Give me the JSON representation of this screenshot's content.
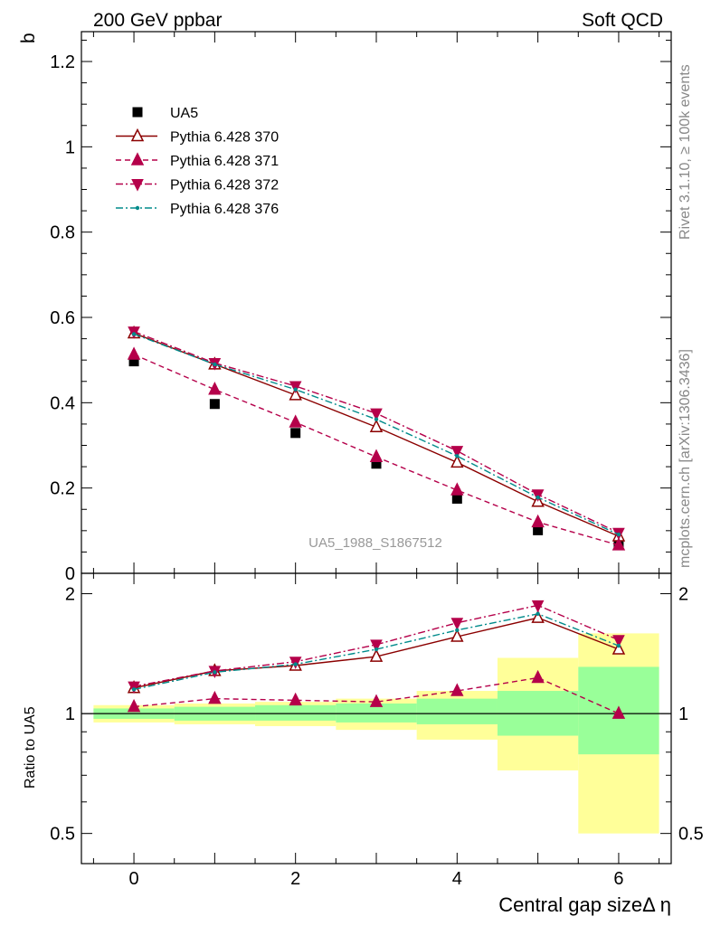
{
  "header": {
    "left": "200 GeV ppbar",
    "right": "Soft QCD"
  },
  "side_labels": {
    "rivet": "Rivet 3.1.10, ≥ 100k events",
    "mcplots": "mcplots.cern.ch [arXiv:1306.3436]"
  },
  "watermark": "UA5_1988_S1867512",
  "chart_data": [
    {
      "type": "scatter",
      "name": "main",
      "ylabel": "b",
      "xlabel": "Central gap sizeΔ η",
      "xlim": [
        -0.65,
        6.65
      ],
      "ylim": [
        0,
        1.27
      ],
      "yticks": [
        0,
        0.2,
        0.4,
        0.6,
        0.8,
        1,
        1.2
      ],
      "ytick_labels": [
        "0",
        "0.2",
        "0.4",
        "0.6",
        "0.8",
        "1",
        "1.2"
      ],
      "x": [
        0,
        1,
        2,
        3,
        4,
        5,
        6
      ],
      "series": [
        {
          "name": "UA5",
          "values": [
            0.497,
            0.397,
            0.329,
            0.257,
            0.175,
            0.101,
            0.066
          ],
          "color": "#000000",
          "marker": "square",
          "line": "none"
        },
        {
          "name": "Pythia 6.428 370",
          "values": [
            0.563,
            0.49,
            0.418,
            0.343,
            0.26,
            0.168,
            0.087
          ],
          "color": "#8b0000",
          "marker": "triangle-up-open",
          "line": "solid"
        },
        {
          "name": "Pythia 6.428 371",
          "values": [
            0.513,
            0.431,
            0.354,
            0.273,
            0.195,
            0.12,
            0.066
          ],
          "color": "#b5004a",
          "marker": "triangle-up",
          "line": "dashed"
        },
        {
          "name": "Pythia 6.428 372",
          "values": [
            0.567,
            0.493,
            0.439,
            0.375,
            0.287,
            0.185,
            0.095
          ],
          "color": "#b5004a",
          "marker": "triangle-down",
          "line": "dashdot"
        },
        {
          "name": "Pythia 6.428 376",
          "values": [
            0.561,
            0.49,
            0.431,
            0.361,
            0.275,
            0.178,
            0.091
          ],
          "color": "#008b8b",
          "marker": "dot",
          "line": "dashdot"
        }
      ],
      "legend": "top-left"
    },
    {
      "type": "scatter",
      "name": "ratio",
      "ylabel": "Ratio to UA5",
      "xlabel": "Central gap sizeΔ η",
      "xlim": [
        -0.65,
        6.65
      ],
      "ylim": [
        0.42,
        2.25
      ],
      "yticks": [
        0.5,
        1,
        2
      ],
      "ytick_labels": [
        "0.5",
        "1",
        "2"
      ],
      "xticks": [
        0,
        2,
        4,
        6
      ],
      "xtick_labels": [
        "0",
        "2",
        "4",
        "6"
      ],
      "bands": {
        "edges": [
          -0.5,
          0.5,
          1.5,
          2.5,
          3.5,
          4.5,
          5.5,
          6.5
        ],
        "green": [
          [
            0.97,
            1.03
          ],
          [
            0.96,
            1.04
          ],
          [
            0.96,
            1.05
          ],
          [
            0.95,
            1.06
          ],
          [
            0.94,
            1.09
          ],
          [
            0.88,
            1.14
          ],
          [
            0.79,
            1.31
          ]
        ],
        "yellow": [
          [
            0.95,
            1.05
          ],
          [
            0.94,
            1.06
          ],
          [
            0.93,
            1.07
          ],
          [
            0.91,
            1.09
          ],
          [
            0.86,
            1.14
          ],
          [
            0.72,
            1.38
          ],
          [
            0.5,
            1.59
          ]
        ]
      },
      "x": [
        0,
        1,
        2,
        3,
        4,
        5,
        6
      ],
      "series": [
        {
          "name": "Pythia 6.428 370",
          "values": [
            1.16,
            1.28,
            1.32,
            1.39,
            1.56,
            1.74,
            1.45
          ],
          "color": "#8b0000",
          "marker": "triangle-up-open",
          "line": "solid"
        },
        {
          "name": "Pythia 6.428 371",
          "values": [
            1.04,
            1.09,
            1.08,
            1.07,
            1.14,
            1.23,
            1.0
          ],
          "color": "#b5004a",
          "marker": "triangle-up",
          "line": "dashed"
        },
        {
          "name": "Pythia 6.428 372",
          "values": [
            1.17,
            1.28,
            1.35,
            1.49,
            1.69,
            1.87,
            1.53
          ],
          "color": "#b5004a",
          "marker": "triangle-down",
          "line": "dashdot"
        },
        {
          "name": "Pythia 6.428 376",
          "values": [
            1.15,
            1.27,
            1.33,
            1.45,
            1.62,
            1.78,
            1.48
          ],
          "color": "#008b8b",
          "marker": "dot",
          "line": "dashdot"
        }
      ]
    }
  ]
}
